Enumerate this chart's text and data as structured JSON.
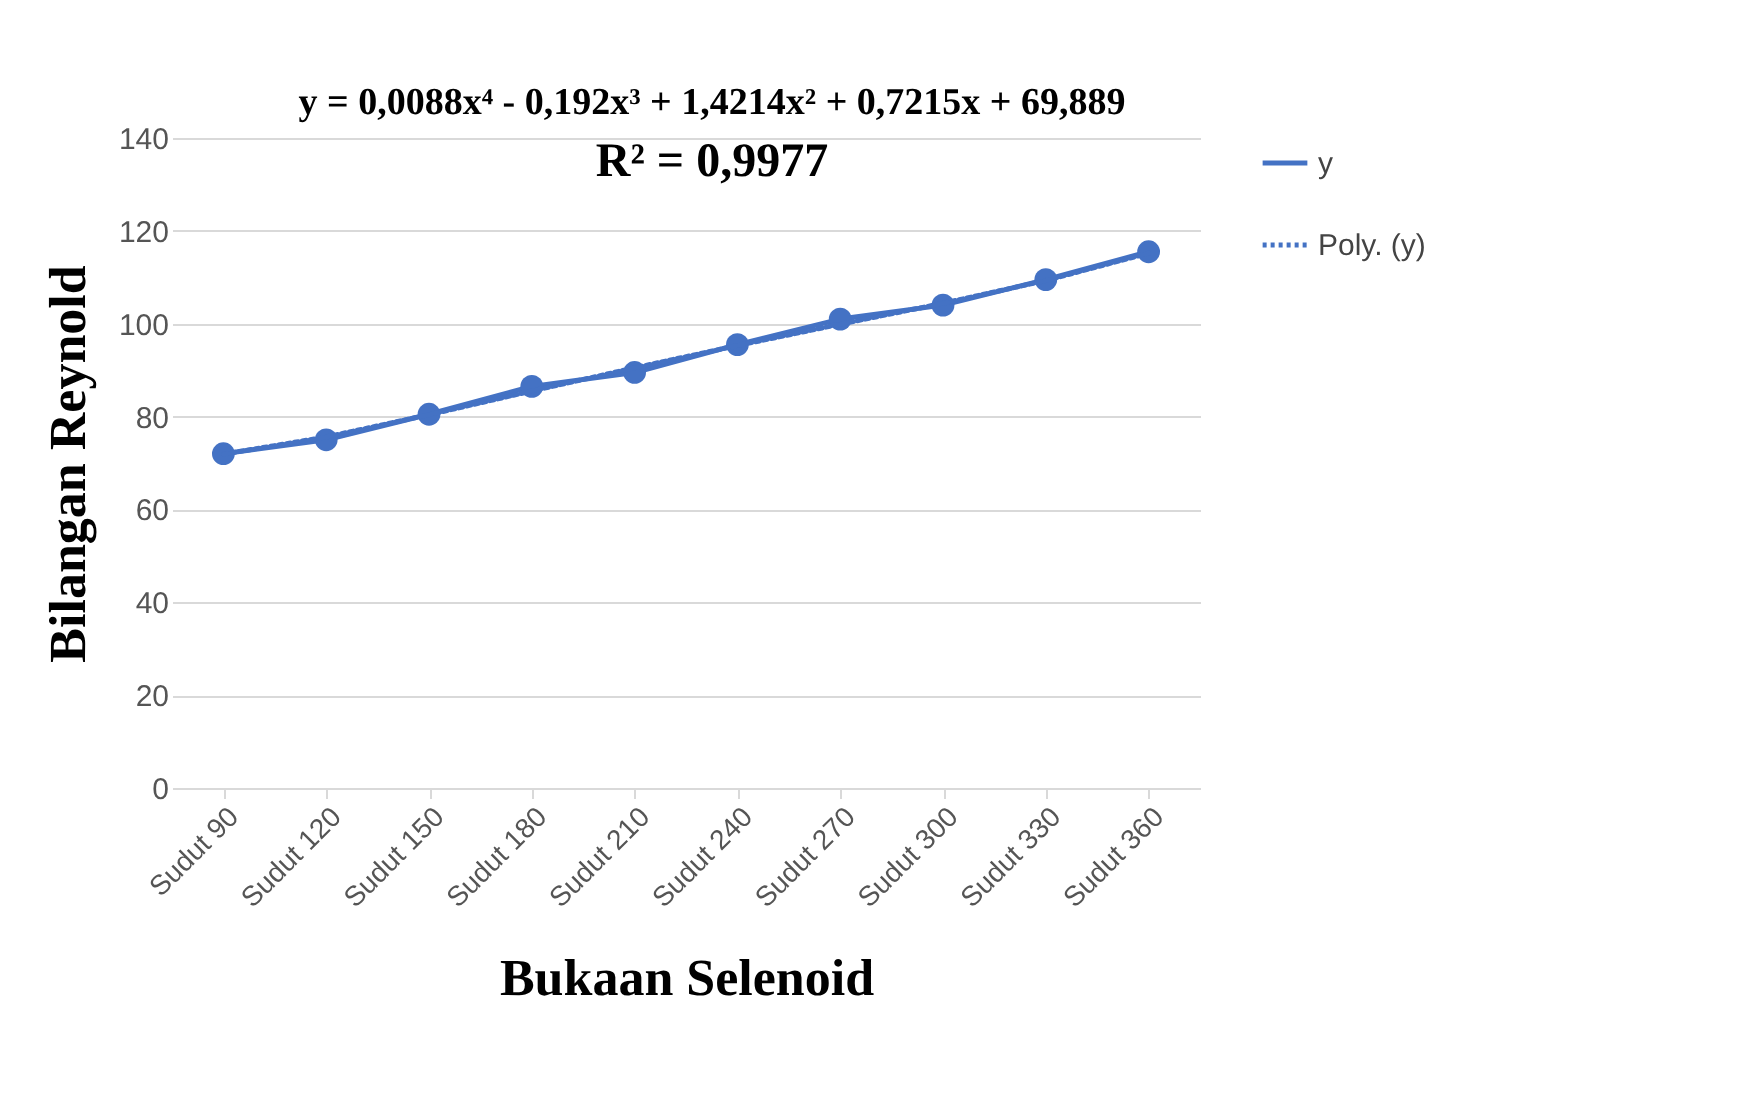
{
  "chart_data": {
    "type": "line",
    "xlabel": "Bukaan Selenoid",
    "ylabel": "Bilangan Reynold",
    "categories": [
      "Sudut 90",
      "Sudut 120",
      "Sudut 150",
      "Sudut 180",
      "Sudut 210",
      "Sudut 240",
      "Sudut 270",
      "Sudut 300",
      "Sudut 330",
      "Sudut 360"
    ],
    "series": [
      {
        "name": "y",
        "color": "#4472c4",
        "marker": "circle",
        "line_style": "solid",
        "values": [
          72,
          75,
          80.5,
          86.5,
          89.5,
          95.5,
          101,
          104,
          109.5,
          115.5
        ]
      },
      {
        "name": "Poly. (y)",
        "color": "#4472c4",
        "marker": "none",
        "line_style": "dotted",
        "values": [
          71.9,
          75.6,
          80.4,
          85.5,
          90.5,
          95.3,
          99.9,
          104.4,
          109.3,
          115.2
        ]
      }
    ],
    "ylim": [
      0,
      140
    ],
    "yticks": [
      0,
      20,
      40,
      60,
      80,
      100,
      120,
      140
    ],
    "grid": "y",
    "legend": "right",
    "annotations": [
      "y = 0,0088x⁴ - 0,192x³ + 1,4214x² + 0,7215x + 69,889",
      "R² = 0,9977"
    ]
  }
}
